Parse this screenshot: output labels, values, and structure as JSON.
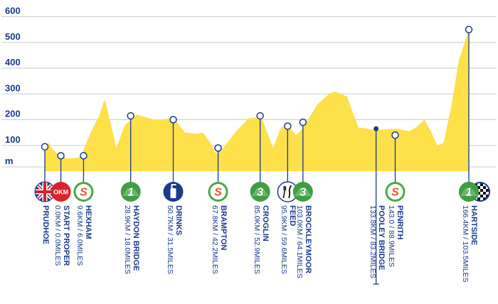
{
  "chart_data": {
    "type": "area",
    "title": "",
    "xlabel": "",
    "ylabel": "m",
    "ylim": [
      0,
      600
    ],
    "yticks": [
      100,
      200,
      300,
      400,
      500,
      600
    ],
    "xlim": [
      0,
      166.4
    ],
    "grid": true,
    "colors": {
      "fill": "#fde04a",
      "line": "#1a3a8a",
      "grid": "#c9cdd6"
    },
    "series": [
      {
        "x": [
          0,
          1.5,
          3.5,
          6,
          8.5,
          10.5,
          14,
          18,
          21.5,
          23.5,
          26,
          28,
          31.5,
          36,
          43,
          50.7,
          55,
          59.2,
          62,
          65,
          67,
          68,
          70,
          75.5,
          80,
          85,
          89.6,
          92.7,
          95.9,
          98.5,
          100.6,
          103,
          107,
          111.6,
          113.8,
          118.6,
          123,
          130,
          137.8,
          140.5,
          143,
          145.7,
          149,
          151.5,
          154,
          156.5,
          159.5,
          162.5,
          166.4
        ],
        "y": [
          95,
          110,
          80,
          60,
          50,
          50,
          55,
          150,
          220,
          280,
          180,
          90,
          180,
          220,
          200,
          205,
          150,
          145,
          150,
          110,
          70,
          75,
          90,
          160,
          205,
          210,
          90,
          170,
          175,
          140,
          160,
          195,
          260,
          300,
          310,
          290,
          170,
          160,
          165,
          160,
          155,
          170,
          200,
          155,
          100,
          110,
          250,
          430,
          550
        ]
      }
    ],
    "waypoints": [
      {
        "name": "PRUDHOE",
        "distance": "",
        "km": 0,
        "elev": 95,
        "icon": "uk-flag-icon"
      },
      {
        "name": "START PROPER",
        "distance": "0.0KM / 0.0MILES",
        "km": 6.3,
        "elev": 60,
        "icon": "okm-icon",
        "icon_text": "OKM"
      },
      {
        "name": "HEXHAM",
        "distance": "9.6KM / 6.0MILES",
        "km": 15.2,
        "elev": 60,
        "icon": "sprint-icon",
        "icon_text": "S"
      },
      {
        "name": "HAYDON BRIDGE",
        "distance": "28.9KM / 18.0MILES",
        "km": 33.7,
        "elev": 215,
        "icon": "kom-cat1-icon",
        "icon_text": "1"
      },
      {
        "name": "DRINKS",
        "distance": "50.7KM / 31.5MILES",
        "km": 50.4,
        "elev": 200,
        "icon": "bottle-icon"
      },
      {
        "name": "BRAMPTON",
        "distance": "67.8KM / 42.2MILES",
        "km": 68,
        "elev": 90,
        "icon": "sprint-icon",
        "icon_text": "S"
      },
      {
        "name": "CROGLIN",
        "distance": "85.0KM / 52.9MILES",
        "km": 84.5,
        "elev": 215,
        "icon": "kom-cat3-icon",
        "icon_text": "3"
      },
      {
        "name": "FEED",
        "distance": "95.9KM / 59.6MILES",
        "km": 95.3,
        "elev": 175,
        "icon": "fork-knife-icon"
      },
      {
        "name": "BROCKLEYMOOR",
        "distance": "103.0KM / 64.1MILES",
        "km": 101.3,
        "elev": 190,
        "icon": "kom-cat3-icon",
        "icon_text": "3"
      },
      {
        "name": "POOLEY BRIDGE",
        "distance": "133.8KM / 83.2MILES",
        "km": 130,
        "elev": 165,
        "icon": ""
      },
      {
        "name": "PENRITH",
        "distance": "143.0 / 88.9MILES",
        "km": 137.5,
        "elev": 140,
        "icon": "sprint-icon",
        "icon_text": "S"
      },
      {
        "name": "HARTSIDE",
        "distance": "166.4KM / 103.5MILES",
        "km": 166.4,
        "elev": 550,
        "icon": "kom-cat1-finish-icon",
        "icon_text": "1"
      }
    ]
  }
}
